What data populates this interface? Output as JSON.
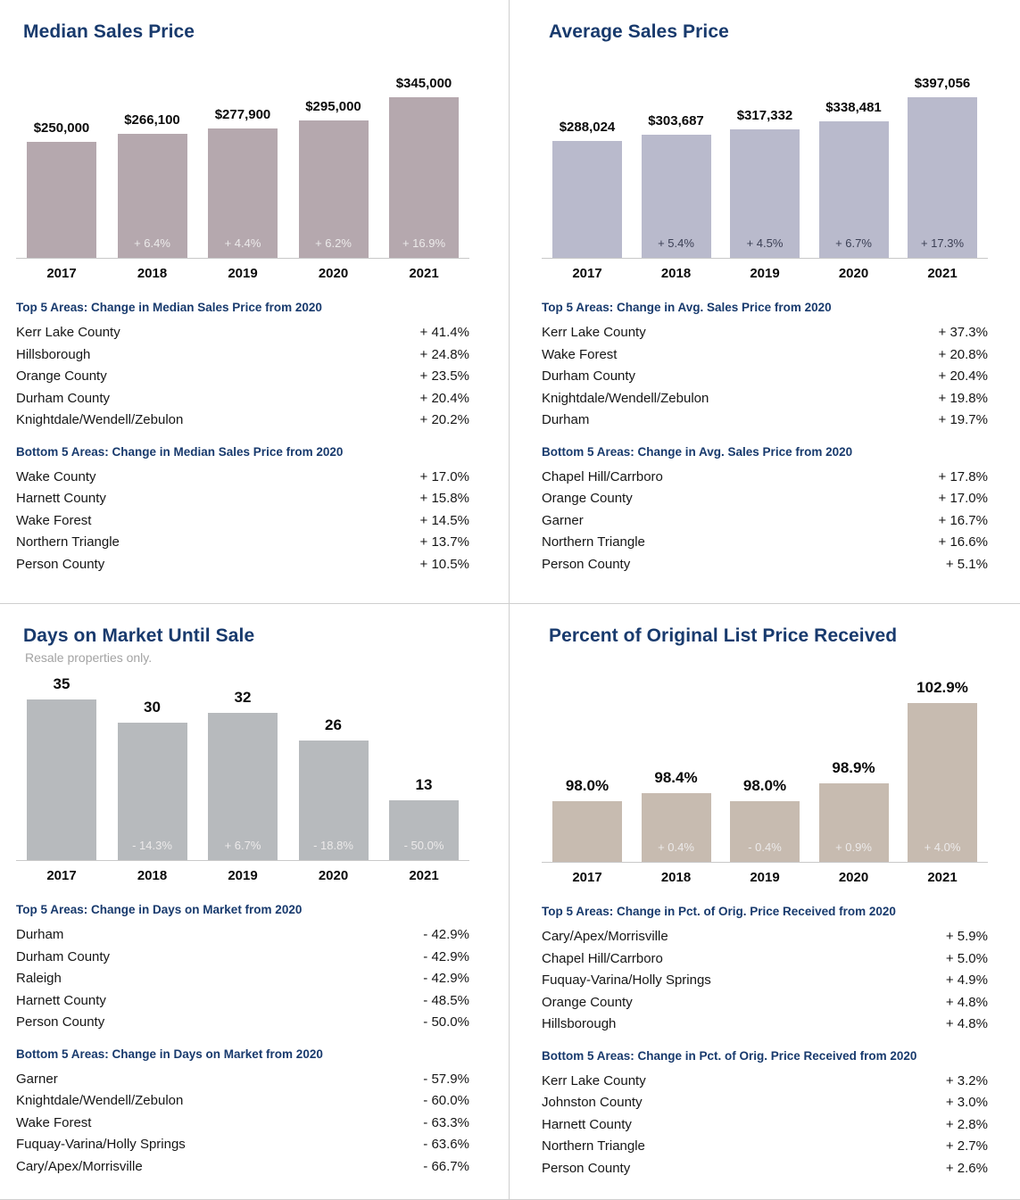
{
  "colors": {
    "heading": "#183a6d",
    "divider": "#cfcfcf",
    "subtitle_text": "#a3a3a3",
    "light_change_text": "#eceaea",
    "dark_change_text": "#3c4055"
  },
  "chart_data": [
    {
      "type": "bar",
      "title": "Median Sales Price",
      "categories": [
        "2017",
        "2018",
        "2019",
        "2020",
        "2021"
      ],
      "values": [
        250000,
        266100,
        277900,
        295000,
        345000
      ],
      "value_labels": [
        "$250,000",
        "$266,100",
        "$277,900",
        "$295,000",
        "$345,000"
      ],
      "change_labels": [
        "",
        "+ 6.4%",
        "+ 4.4%",
        "+ 6.2%",
        "+ 16.9%"
      ],
      "ylim": [
        0,
        345000
      ],
      "bar_color": "#b5a8ae",
      "change_label_color": "#eceaea",
      "grid": false,
      "legend": "none"
    },
    {
      "type": "bar",
      "title": "Average Sales Price",
      "categories": [
        "2017",
        "2018",
        "2019",
        "2020",
        "2021"
      ],
      "values": [
        288024,
        303687,
        317332,
        338481,
        397056
      ],
      "value_labels": [
        "$288,024",
        "$303,687",
        "$317,332",
        "$338,481",
        "$397,056"
      ],
      "change_labels": [
        "",
        "+ 5.4%",
        "+ 4.5%",
        "+ 6.7%",
        "+ 17.3%"
      ],
      "ylim": [
        0,
        397056
      ],
      "bar_color": "#b9bacc",
      "change_label_color": "#3c4055",
      "grid": false,
      "legend": "none"
    },
    {
      "type": "bar",
      "title": "Days on Market Until Sale",
      "subtitle": "Resale properties only.",
      "categories": [
        "2017",
        "2018",
        "2019",
        "2020",
        "2021"
      ],
      "values": [
        35,
        30,
        32,
        26,
        13
      ],
      "value_labels": [
        "35",
        "30",
        "32",
        "26",
        "13"
      ],
      "change_labels": [
        "",
        "- 14.3%",
        "+ 6.7%",
        "- 18.8%",
        "- 50.0%"
      ],
      "ylim": [
        0,
        35
      ],
      "bar_color": "#b7babd",
      "change_label_color": "#eceaea",
      "grid": false,
      "legend": "none"
    },
    {
      "type": "bar",
      "title": "Percent of Original List Price Received",
      "categories": [
        "2017",
        "2018",
        "2019",
        "2020",
        "2021"
      ],
      "values": [
        98.0,
        98.4,
        98.0,
        98.9,
        102.9
      ],
      "value_labels": [
        "98.0%",
        "98.4%",
        "98.0%",
        "98.9%",
        "102.9%"
      ],
      "change_labels": [
        "",
        "+ 0.4%",
        "- 0.4%",
        "+ 0.9%",
        "+ 4.0%"
      ],
      "ylim": [
        95,
        103
      ],
      "bar_color": "#c7bbb0",
      "change_label_color": "#eceaea",
      "grid": false,
      "legend": "none"
    }
  ],
  "quadrants": [
    {
      "title": "Median Sales Price",
      "subtitle": "",
      "sections": [
        {
          "header": "Top 5 Areas: Change in Median Sales Price from 2020",
          "rows": [
            {
              "name": "Kerr Lake County",
              "value": "+ 41.4%"
            },
            {
              "name": "Hillsborough",
              "value": "+ 24.8%"
            },
            {
              "name": "Orange County",
              "value": "+ 23.5%"
            },
            {
              "name": "Durham County",
              "value": "+ 20.4%"
            },
            {
              "name": "Knightdale/Wendell/Zebulon",
              "value": "+ 20.2%"
            }
          ]
        },
        {
          "header": "Bottom 5 Areas: Change in Median Sales Price from 2020",
          "rows": [
            {
              "name": "Wake County",
              "value": "+ 17.0%"
            },
            {
              "name": "Harnett County",
              "value": "+ 15.8%"
            },
            {
              "name": "Wake Forest",
              "value": "+ 14.5%"
            },
            {
              "name": "Northern Triangle",
              "value": "+ 13.7%"
            },
            {
              "name": "Person County",
              "value": "+ 10.5%"
            }
          ]
        }
      ]
    },
    {
      "title": "Average Sales Price",
      "subtitle": "",
      "sections": [
        {
          "header": "Top 5 Areas: Change in Avg. Sales Price from 2020",
          "rows": [
            {
              "name": "Kerr Lake County",
              "value": "+ 37.3%"
            },
            {
              "name": "Wake Forest",
              "value": "+ 20.8%"
            },
            {
              "name": "Durham County",
              "value": "+ 20.4%"
            },
            {
              "name": "Knightdale/Wendell/Zebulon",
              "value": "+ 19.8%"
            },
            {
              "name": "Durham",
              "value": "+ 19.7%"
            }
          ]
        },
        {
          "header": "Bottom 5 Areas: Change in Avg. Sales Price from 2020",
          "rows": [
            {
              "name": "Chapel Hill/Carrboro",
              "value": "+ 17.8%"
            },
            {
              "name": "Orange County",
              "value": "+ 17.0%"
            },
            {
              "name": "Garner",
              "value": "+ 16.7%"
            },
            {
              "name": "Northern Triangle",
              "value": "+ 16.6%"
            },
            {
              "name": "Person County",
              "value": "+ 5.1%"
            }
          ]
        }
      ]
    },
    {
      "title": "Days on Market Until Sale",
      "subtitle": "Resale properties only.",
      "sections": [
        {
          "header": "Top 5 Areas: Change in Days on Market from 2020",
          "rows": [
            {
              "name": "Durham",
              "value": "- 42.9%"
            },
            {
              "name": "Durham County",
              "value": "- 42.9%"
            },
            {
              "name": "Raleigh",
              "value": "- 42.9%"
            },
            {
              "name": "Harnett County",
              "value": "- 48.5%"
            },
            {
              "name": "Person County",
              "value": "- 50.0%"
            }
          ]
        },
        {
          "header": "Bottom 5 Areas: Change in Days on Market from 2020",
          "rows": [
            {
              "name": "Garner",
              "value": "- 57.9%"
            },
            {
              "name": "Knightdale/Wendell/Zebulon",
              "value": "- 60.0%"
            },
            {
              "name": "Wake Forest",
              "value": "- 63.3%"
            },
            {
              "name": "Fuquay-Varina/Holly Springs",
              "value": "- 63.6%"
            },
            {
              "name": "Cary/Apex/Morrisville",
              "value": "- 66.7%"
            }
          ]
        }
      ]
    },
    {
      "title": "Percent of Original List Price Received",
      "subtitle": "",
      "sections": [
        {
          "header": "Top 5 Areas: Change in Pct. of Orig. Price Received from 2020",
          "rows": [
            {
              "name": "Cary/Apex/Morrisville",
              "value": "+ 5.9%"
            },
            {
              "name": "Chapel Hill/Carrboro",
              "value": "+ 5.0%"
            },
            {
              "name": "Fuquay-Varina/Holly Springs",
              "value": "+ 4.9%"
            },
            {
              "name": "Orange County",
              "value": "+ 4.8%"
            },
            {
              "name": "Hillsborough",
              "value": "+ 4.8%"
            }
          ]
        },
        {
          "header": "Bottom 5 Areas: Change in Pct. of Orig. Price Received from 2020",
          "rows": [
            {
              "name": "Kerr Lake County",
              "value": "+ 3.2%"
            },
            {
              "name": "Johnston County",
              "value": "+ 3.0%"
            },
            {
              "name": "Harnett County",
              "value": "+ 2.8%"
            },
            {
              "name": "Northern Triangle",
              "value": "+ 2.7%"
            },
            {
              "name": "Person County",
              "value": "+ 2.6%"
            }
          ]
        }
      ]
    }
  ]
}
